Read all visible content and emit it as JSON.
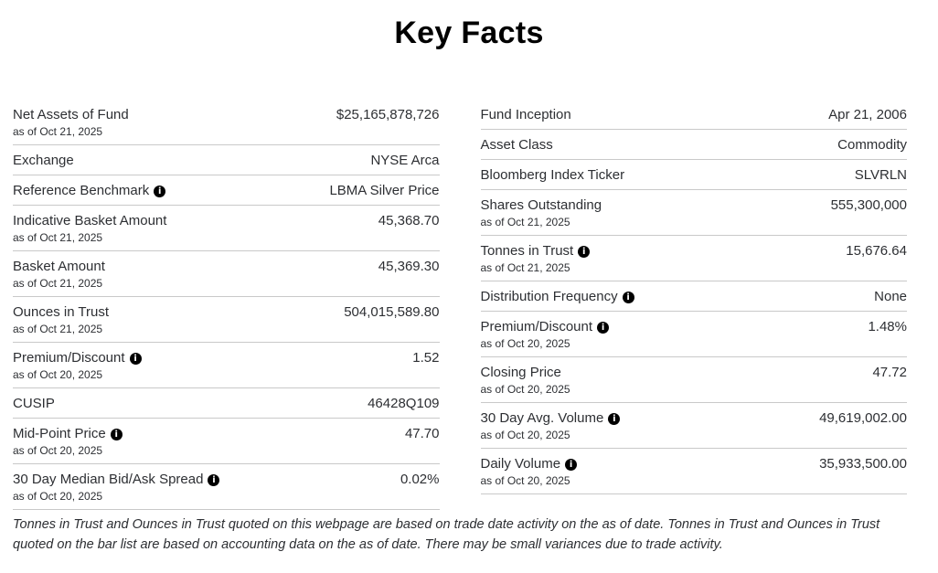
{
  "page": {
    "title": "Key Facts"
  },
  "icons": {
    "info_glyph": "i"
  },
  "colors": {
    "title": "#000000",
    "text": "#2d2f33",
    "divider": "#c9c9c9",
    "info_bg": "#000000",
    "info_fg": "#ffffff"
  },
  "columns": {
    "left": [
      {
        "label": "Net Assets of Fund",
        "as_of": "as of Oct 21, 2025",
        "value": "$25,165,878,726",
        "info": false
      },
      {
        "label": "Exchange",
        "value": "NYSE Arca",
        "info": false
      },
      {
        "label": "Reference Benchmark",
        "value": "LBMA Silver Price",
        "info": true
      },
      {
        "label": "Indicative Basket Amount",
        "as_of": "as of Oct 21, 2025",
        "value": "45,368.70",
        "info": false
      },
      {
        "label": "Basket Amount",
        "as_of": "as of Oct 21, 2025",
        "value": "45,369.30",
        "info": false
      },
      {
        "label": "Ounces in Trust",
        "as_of": "as of Oct 21, 2025",
        "value": "504,015,589.80",
        "info": false
      },
      {
        "label": "Premium/Discount",
        "as_of": "as of Oct 20, 2025",
        "value": "1.52",
        "info": true
      },
      {
        "label": "CUSIP",
        "value": "46428Q109",
        "info": false
      },
      {
        "label": "Mid-Point Price",
        "as_of": "as of Oct 20, 2025",
        "value": "47.70",
        "info": true
      },
      {
        "label": "30 Day Median Bid/Ask Spread",
        "as_of": "as of Oct 20, 2025",
        "value": "0.02%",
        "info": true
      }
    ],
    "right": [
      {
        "label": "Fund Inception",
        "value": "Apr 21, 2006",
        "info": false
      },
      {
        "label": "Asset Class",
        "value": "Commodity",
        "info": false
      },
      {
        "label": "Bloomberg Index Ticker",
        "value": "SLVRLN",
        "info": false
      },
      {
        "label": "Shares Outstanding",
        "as_of": "as of Oct 21, 2025",
        "value": "555,300,000",
        "info": false
      },
      {
        "label": "Tonnes in Trust",
        "as_of": "as of Oct 21, 2025",
        "value": "15,676.64",
        "info": true
      },
      {
        "label": "Distribution Frequency",
        "value": "None",
        "info": true
      },
      {
        "label": "Premium/Discount",
        "as_of": "as of Oct 20, 2025",
        "value": "1.48%",
        "info": true
      },
      {
        "label": "Closing Price",
        "as_of": "as of Oct 20, 2025",
        "value": "47.72",
        "info": false
      },
      {
        "label": "30 Day Avg. Volume",
        "as_of": "as of Oct 20, 2025",
        "value": "49,619,002.00",
        "info": true
      },
      {
        "label": "Daily Volume",
        "as_of": "as of Oct 20, 2025",
        "value": "35,933,500.00",
        "info": true
      }
    ]
  },
  "footnote": "Tonnes in Trust and Ounces in Trust quoted on this webpage are based on trade date activity on the as of date. Tonnes in Trust and Ounces in Trust quoted on the bar list are based on accounting data on the as of date. There may be small variances due to trade activity."
}
